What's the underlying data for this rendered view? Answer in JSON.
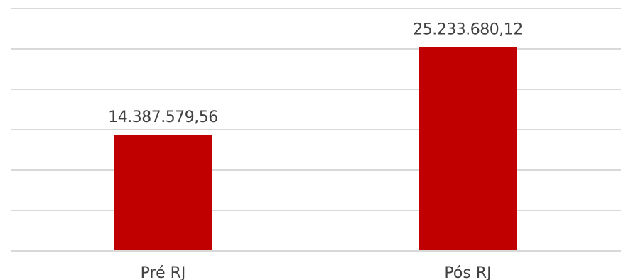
{
  "chart_data": {
    "type": "bar",
    "categories": [
      "Pré RJ",
      "Pós RJ"
    ],
    "values": [
      14387579.56,
      25233680.12
    ],
    "data_labels": [
      "14.387.579,56",
      "25.233.680,12"
    ],
    "ylim": [
      0,
      30000000
    ],
    "grid": true,
    "bar_color": "#c00000",
    "title": "",
    "xlabel": "",
    "ylabel": ""
  }
}
